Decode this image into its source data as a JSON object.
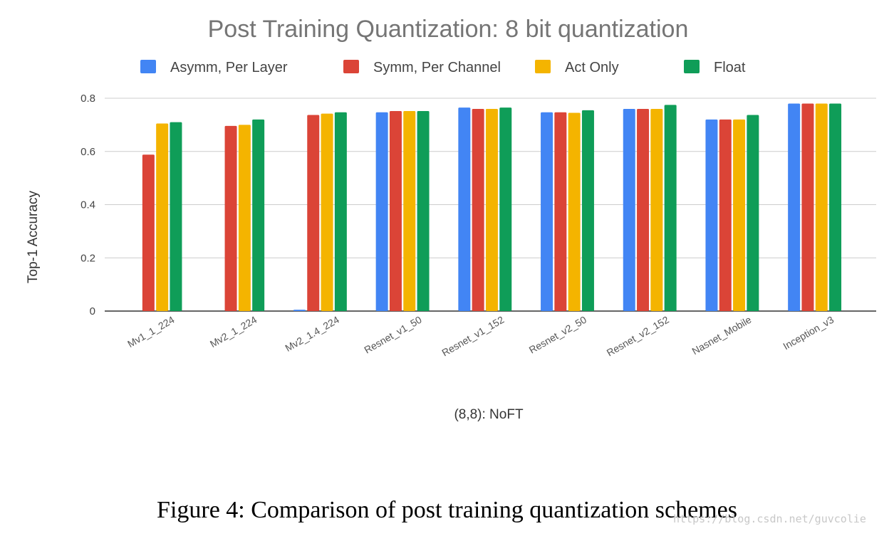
{
  "chart_data": {
    "type": "bar",
    "title": "Post Training Quantization: 8 bit quantization",
    "xlabel": "(8,8): NoFT",
    "ylabel": "Top-1 Accuracy",
    "ylim": [
      0,
      0.8
    ],
    "yticks": [
      "0",
      "0.2",
      "0.4",
      "0.6",
      "0.8"
    ],
    "grid": true,
    "legend_position": "top",
    "categories": [
      "Mv1_1_224",
      "Mv2_1_224",
      "Mv2_1.4_224",
      "Resnet_v1_50",
      "Resnet_v1_152",
      "Resnet_v2_50",
      "Resnet_v2_152",
      "Nasnet_Mobile",
      "Inception_v3"
    ],
    "series": [
      {
        "name": "Asymm, Per Layer",
        "color": "#4285F4",
        "values": [
          0.0,
          0.0,
          0.005,
          0.747,
          0.765,
          0.747,
          0.76,
          0.72,
          0.78
        ]
      },
      {
        "name": "Symm, Per Channel",
        "color": "#DB4437",
        "values": [
          0.588,
          0.696,
          0.737,
          0.752,
          0.76,
          0.747,
          0.76,
          0.72,
          0.78
        ]
      },
      {
        "name": "Act Only",
        "color": "#F4B400",
        "values": [
          0.705,
          0.7,
          0.742,
          0.752,
          0.76,
          0.745,
          0.76,
          0.72,
          0.78
        ]
      },
      {
        "name": "Float",
        "color": "#0F9D58",
        "values": [
          0.71,
          0.72,
          0.747,
          0.752,
          0.765,
          0.755,
          0.775,
          0.737,
          0.78
        ]
      }
    ]
  },
  "caption": "Figure 4: Comparison of post training quantization schemes",
  "watermark": "https://blog.csdn.net/guvcolie"
}
